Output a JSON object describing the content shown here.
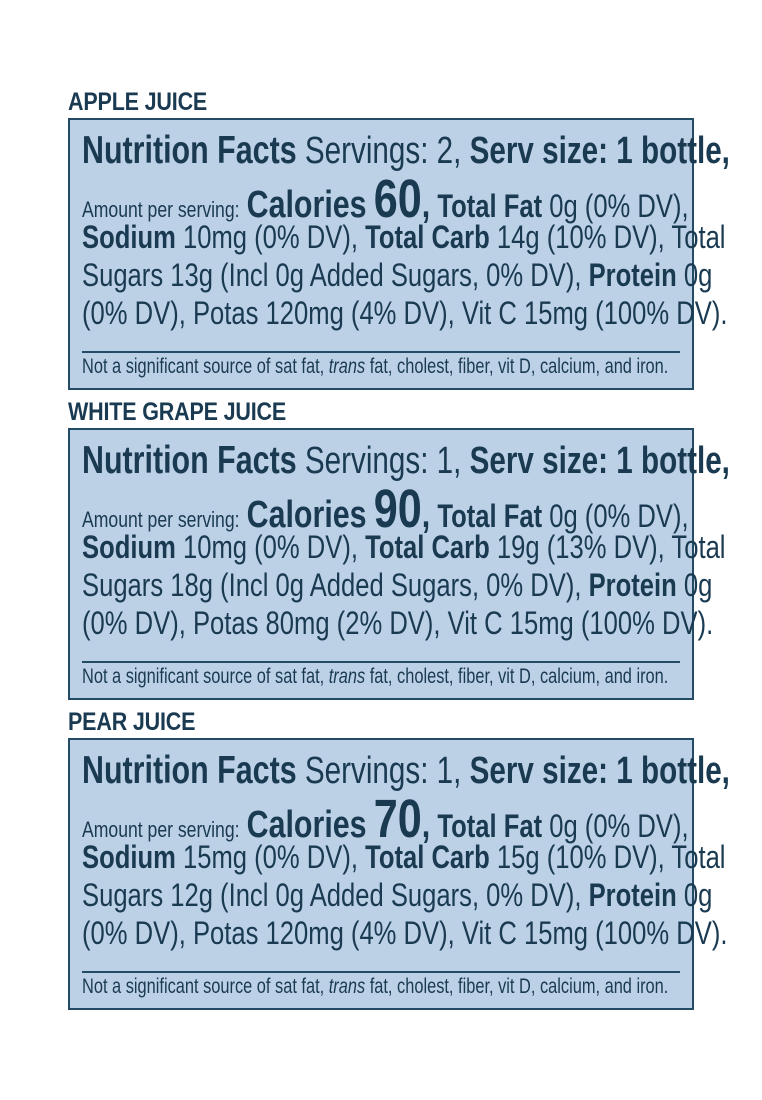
{
  "common": {
    "panel_title": "Nutrition Facts",
    "servings_label": "Servings:",
    "serv_size_label": "Serv size:",
    "serv_size_value": "1 bottle,",
    "amount_label": "Amount per serving:",
    "calories_label": "Calories",
    "total_fat_label": "Total Fat",
    "sodium_label": "Sodium",
    "total_carb_label": "Total Carb",
    "total_sugars_label": "Total",
    "sugars_word": "Sugars",
    "added_sugars_text": "(Incl 0g Added Sugars, 0% DV),",
    "protein_label": "Protein",
    "potas_label": "Potas",
    "vitc_label": "Vit C",
    "footnote_pre": "Not a significant source of sat fat,",
    "footnote_trans": "trans",
    "footnote_post": "fat, cholest, fiber, vit D, calcium, and iron."
  },
  "products": [
    {
      "name": "APPLE JUICE",
      "servings": "2,",
      "calories": "60",
      "total_fat": "0g (0% DV),",
      "sodium": "10mg (0% DV),",
      "total_carb": "14g (10% DV),",
      "total_sugars": "13g",
      "protein": "0g",
      "protein_dv": "(0% DV),",
      "potas": "120mg (4% DV),",
      "vitc": "15mg (100% DV)."
    },
    {
      "name": "WHITE GRAPE JUICE",
      "servings": "1,",
      "calories": "90",
      "total_fat": "0g (0% DV),",
      "sodium": "10mg (0% DV),",
      "total_carb": "19g (13% DV),",
      "total_sugars": "18g",
      "protein": "0g",
      "protein_dv": "(0% DV),",
      "potas": "80mg (2% DV),",
      "vitc": "15mg (100% DV)."
    },
    {
      "name": "PEAR JUICE",
      "servings": "1,",
      "calories": "70",
      "total_fat": "0g (0% DV),",
      "sodium": "15mg (0% DV),",
      "total_carb": "15g (10% DV),",
      "total_sugars": "12g",
      "protein": "0g",
      "protein_dv": "(0% DV),",
      "potas": "120mg (4% DV),",
      "vitc": "15mg (100% DV)."
    }
  ]
}
